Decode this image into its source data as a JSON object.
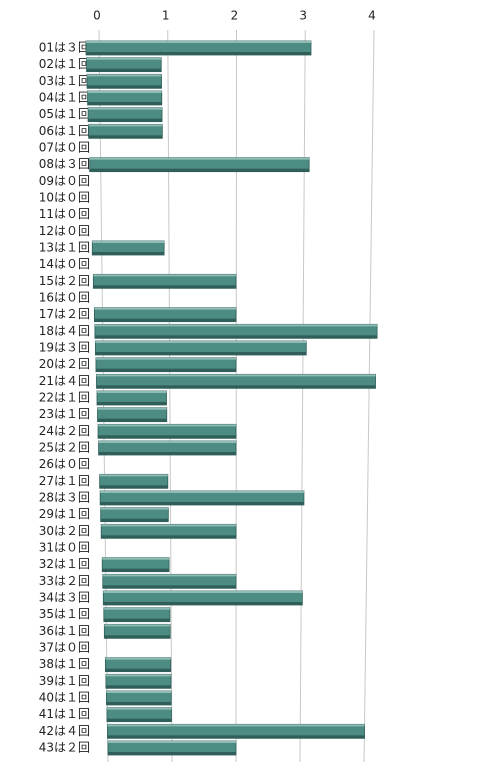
{
  "chart_data": {
    "type": "bar",
    "orientation": "horizontal",
    "color": "#4d8c82",
    "categories": [
      "01は３回",
      "02は１回",
      "03は１回",
      "04は１回",
      "05は１回",
      "06は１回",
      "07は０回",
      "08は３回",
      "09は０回",
      "10は０回",
      "11は０回",
      "12は０回",
      "13は１回",
      "14は０回",
      "15は２回",
      "16は０回",
      "17は２回",
      "18は４回",
      "19は３回",
      "20は２回",
      "21は４回",
      "22は１回",
      "23は１回",
      "24は２回",
      "25は２回",
      "26は０回",
      "27は１回",
      "28は３回",
      "29は１回",
      "30は２回",
      "31は０回",
      "32は１回",
      "33は２回",
      "34は３回",
      "35は１回",
      "36は１回",
      "37は０回",
      "38は１回",
      "39は１回",
      "40は１回",
      "41は１回",
      "42は４回",
      "43は２回"
    ],
    "values": [
      3,
      1,
      1,
      1,
      1,
      1,
      0,
      3,
      0,
      0,
      0,
      0,
      1,
      0,
      2,
      0,
      2,
      4,
      3,
      2,
      4,
      1,
      1,
      2,
      2,
      0,
      1,
      3,
      1,
      2,
      0,
      1,
      2,
      3,
      1,
      1,
      0,
      1,
      1,
      1,
      1,
      4,
      2
    ],
    "xlim": [
      0,
      4
    ],
    "xticks": [
      0,
      1,
      2,
      3,
      4
    ],
    "grid": true
  }
}
